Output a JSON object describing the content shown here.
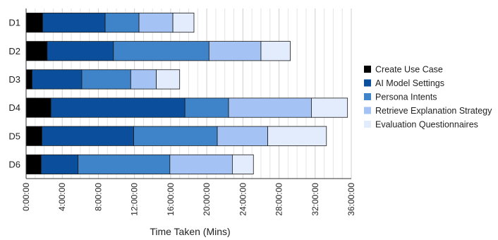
{
  "chart_data": {
    "type": "bar",
    "orientation": "horizontal",
    "stacked": true,
    "categories": [
      "D1",
      "D2",
      "D3",
      "D4",
      "D5",
      "D6"
    ],
    "xlabel": "Time Taken (Mins)",
    "xlim": [
      0,
      2160
    ],
    "x_ticks": [
      {
        "value": 0,
        "label": "0:00:00"
      },
      {
        "value": 240,
        "label": "4:00:00"
      },
      {
        "value": 480,
        "label": "8:00:00"
      },
      {
        "value": 720,
        "label": "12:00:00"
      },
      {
        "value": 960,
        "label": "16:00:00"
      },
      {
        "value": 1200,
        "label": "20:00:00"
      },
      {
        "value": 1440,
        "label": "24:00:00"
      },
      {
        "value": 1680,
        "label": "28:00:00"
      },
      {
        "value": 1920,
        "label": "32:00:00"
      },
      {
        "value": 2160,
        "label": "36:00:00"
      }
    ],
    "grid": true,
    "legend_position": "right",
    "series": [
      {
        "name": "Create Use Case",
        "color": "#000000",
        "values": [
          110,
          140,
          40,
          165,
          105,
          100
        ]
      },
      {
        "name": "AI Model Settings",
        "color": "#0b4f9c",
        "values": [
          415,
          440,
          330,
          890,
          610,
          245
        ]
      },
      {
        "name": "Persona Intents",
        "color": "#3f84c9",
        "values": [
          225,
          635,
          325,
          290,
          555,
          610
        ]
      },
      {
        "name": "Retrieve Explanation Strategy",
        "color": "#a4c2f4",
        "values": [
          225,
          345,
          170,
          550,
          335,
          415
        ]
      },
      {
        "name": "Evaluation Questionnaires",
        "color": "#e3ecfd",
        "values": [
          140,
          195,
          155,
          240,
          390,
          140
        ]
      }
    ]
  }
}
